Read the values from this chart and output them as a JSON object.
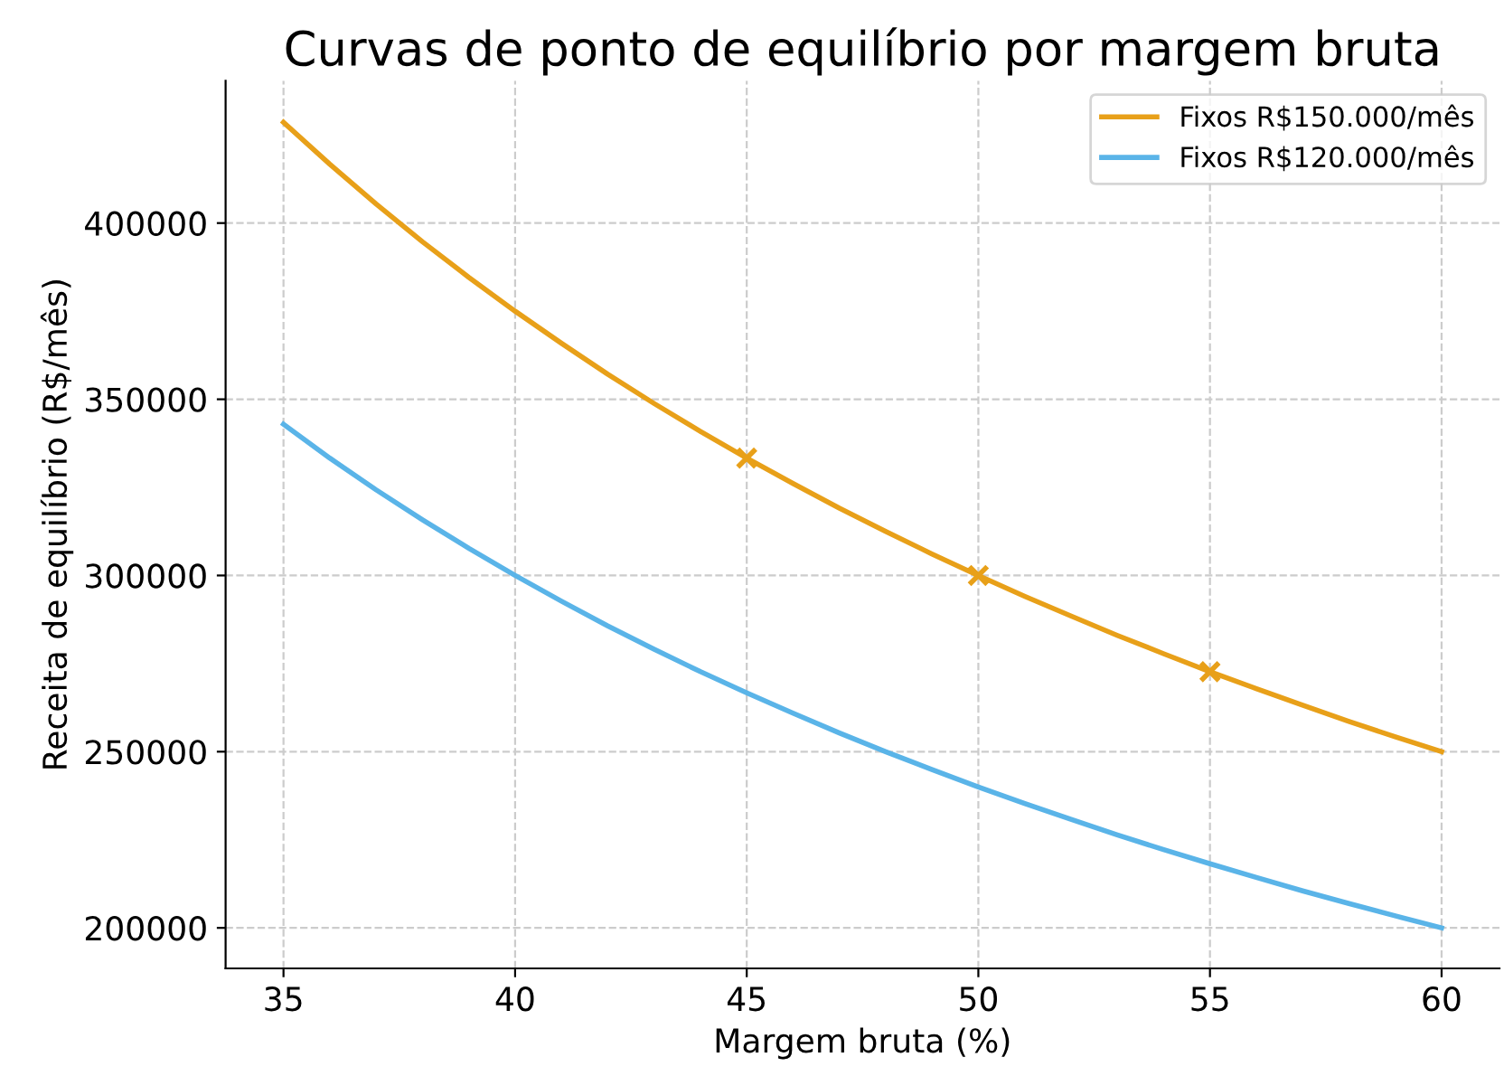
{
  "chart_data": {
    "type": "line",
    "title": "Curvas de ponto de equilíbrio por margem bruta",
    "xlabel": "Margem bruta (%)",
    "ylabel": "Receita de equilíbrio (R$/mês)",
    "xlim": [
      33.75,
      61.25
    ],
    "xticks": [
      35,
      40,
      45,
      50,
      55,
      60
    ],
    "ylim": [
      188500,
      440400
    ],
    "yticks": [
      200000,
      250000,
      300000,
      350000,
      400000
    ],
    "grid": true,
    "legend": "top right",
    "line_style": "solid",
    "series": [
      {
        "name": "Fixos R$150.000/mês",
        "color": "#e8a019",
        "marker": "none",
        "x": [
          35,
          36,
          37,
          38,
          39,
          40,
          41,
          42,
          43,
          44,
          45,
          46,
          47,
          48,
          49,
          50,
          51,
          52,
          53,
          54,
          55,
          56,
          57,
          58,
          59,
          60
        ],
        "values": [
          428600,
          416700,
          405400,
          394700,
          384600,
          375000,
          365900,
          357100,
          348800,
          340900,
          333300,
          326100,
          319100,
          312500,
          306100,
          300000,
          294100,
          288500,
          283000,
          277800,
          272700,
          267900,
          263200,
          258600,
          254200,
          250000
        ]
      },
      {
        "name": "Fixos R$120.000/mês",
        "color": "#5ab4e8",
        "marker": "none",
        "x": [
          35,
          36,
          37,
          38,
          39,
          40,
          41,
          42,
          43,
          44,
          45,
          46,
          47,
          48,
          49,
          50,
          51,
          52,
          53,
          54,
          55,
          56,
          57,
          58,
          59,
          60
        ],
        "values": [
          342900,
          333300,
          324300,
          315800,
          307700,
          300000,
          292700,
          285700,
          279100,
          272700,
          266700,
          260900,
          255300,
          250000,
          244900,
          240000,
          235300,
          230800,
          226400,
          222200,
          218200,
          214300,
          210500,
          206900,
          203400,
          200000
        ]
      },
      {
        "type": "scatter",
        "color": "#e8a019",
        "marker": "cross",
        "x": [
          45,
          50,
          55
        ],
        "values": [
          333300,
          300000,
          272700
        ]
      }
    ]
  }
}
